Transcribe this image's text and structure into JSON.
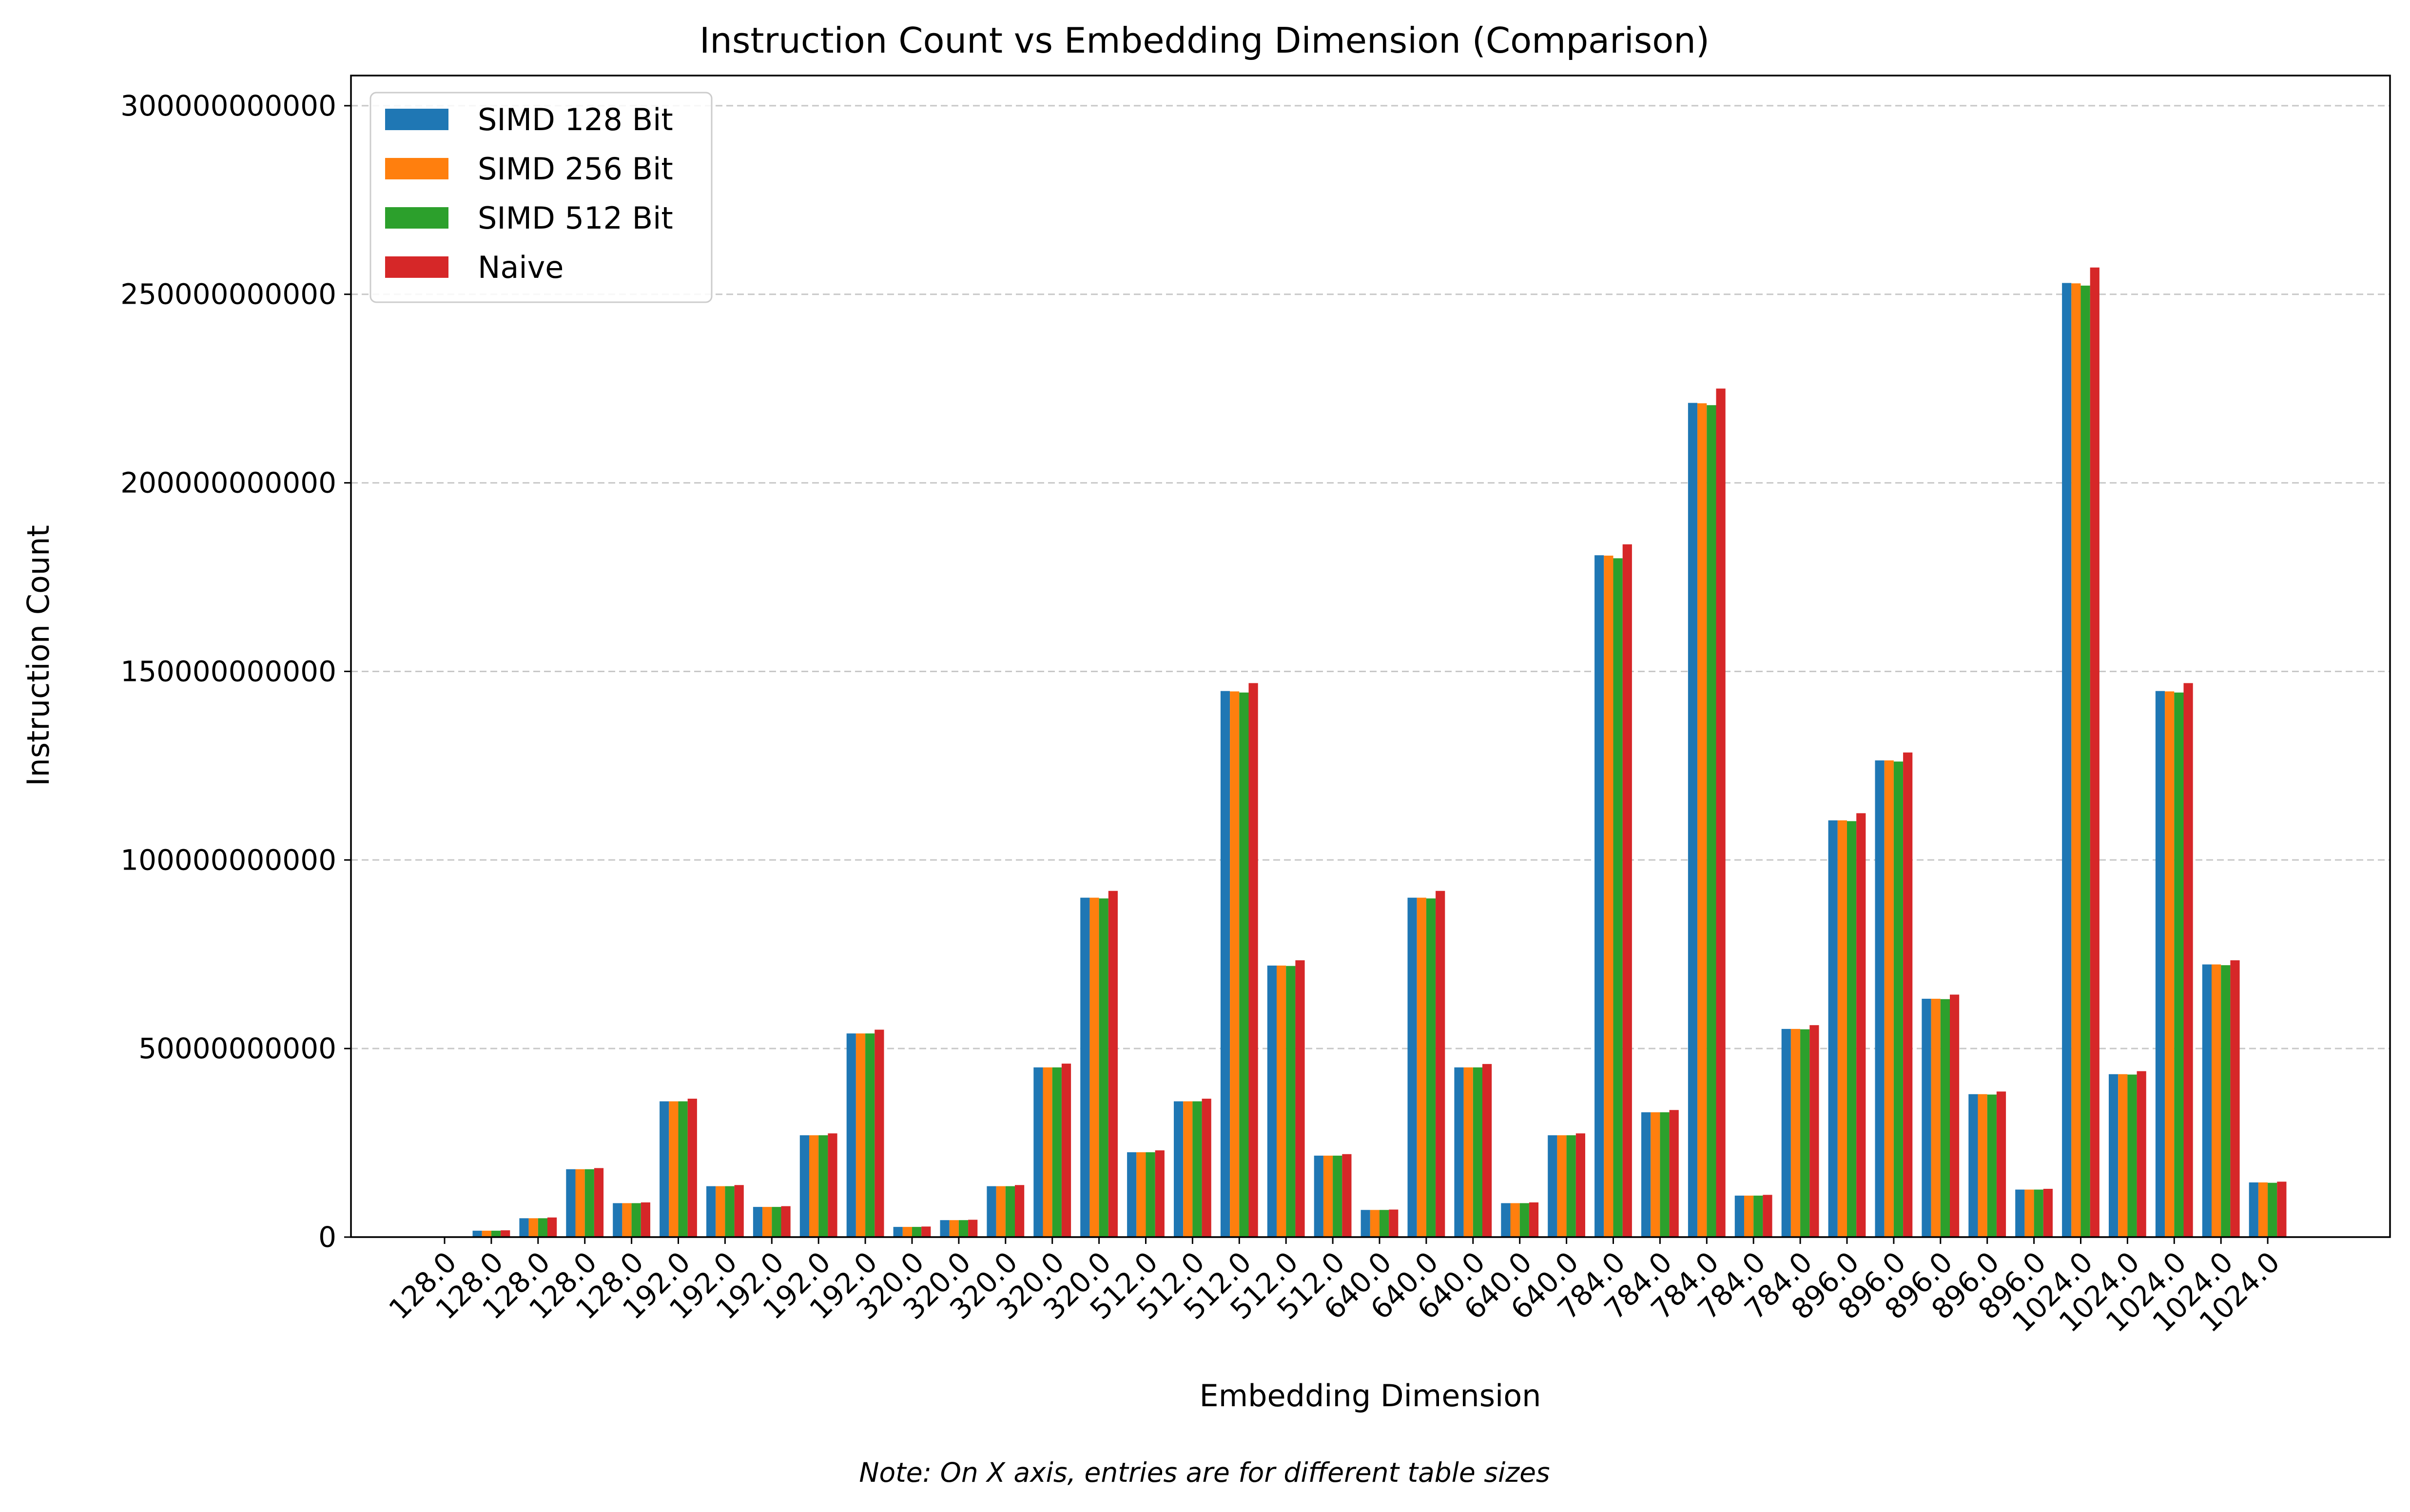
{
  "chart_data": {
    "type": "bar",
    "title": "Instruction Count vs Embedding Dimension (Comparison)",
    "xlabel": "Embedding Dimension",
    "ylabel": "Instruction Count",
    "note": "Note: On X axis, entries are for different table sizes",
    "categories": [
      "128.0",
      "128.0",
      "128.0",
      "128.0",
      "128.0",
      "192.0",
      "192.0",
      "192.0",
      "192.0",
      "192.0",
      "320.0",
      "320.0",
      "320.0",
      "320.0",
      "320.0",
      "512.0",
      "512.0",
      "512.0",
      "512.0",
      "512.0",
      "640.0",
      "640.0",
      "640.0",
      "640.0",
      "640.0",
      "784.0",
      "784.0",
      "784.0",
      "784.0",
      "784.0",
      "896.0",
      "896.0",
      "896.0",
      "896.0",
      "896.0",
      "1024.0",
      "1024.0",
      "1024.0",
      "1024.0",
      "1024.0"
    ],
    "yticks": [
      0,
      50000000000,
      100000000000,
      150000000000,
      200000000000,
      250000000000,
      300000000000
    ],
    "ytick_labels": [
      "0",
      "50000000000",
      "100000000000",
      "150000000000",
      "200000000000",
      "250000000000",
      "300000000000"
    ],
    "ylim": [
      0,
      308000000000
    ],
    "grid": "y-dashed",
    "legend_position": "top-left",
    "series": [
      {
        "name": "SIMD 128 Bit",
        "color": "#1f77b4",
        "values": [
          0,
          1700000000,
          5000000000,
          18000000000,
          9000000000,
          36000000000,
          13500000000,
          8000000000,
          27000000000,
          54000000000,
          2700000000,
          4500000000,
          13500000000,
          45000000000,
          90000000000,
          22500000000,
          36000000000,
          144800000000,
          72000000000,
          21600000000,
          7200000000,
          90000000000,
          45000000000,
          9000000000,
          27000000000,
          180800000000,
          33100000000,
          221200000000,
          11000000000,
          55200000000,
          110500000000,
          126400000000,
          63200000000,
          37900000000,
          12600000000,
          253000000000,
          43200000000,
          144800000000,
          72300000000,
          14500000000
        ]
      },
      {
        "name": "SIMD 256 Bit",
        "color": "#ff7f0e",
        "values": [
          0,
          1700000000,
          5000000000,
          18000000000,
          9000000000,
          36000000000,
          13500000000,
          8000000000,
          27000000000,
          54000000000,
          2700000000,
          4500000000,
          13500000000,
          45000000000,
          90000000000,
          22500000000,
          36000000000,
          144700000000,
          72000000000,
          21600000000,
          7200000000,
          90000000000,
          45000000000,
          9000000000,
          27000000000,
          180700000000,
          33100000000,
          221100000000,
          11000000000,
          55200000000,
          110500000000,
          126400000000,
          63200000000,
          37900000000,
          12600000000,
          252900000000,
          43200000000,
          144700000000,
          72300000000,
          14500000000
        ]
      },
      {
        "name": "SIMD 512 Bit",
        "color": "#2ca02c",
        "values": [
          0,
          1700000000,
          5000000000,
          18000000000,
          9000000000,
          36000000000,
          13500000000,
          8000000000,
          27000000000,
          54000000000,
          2700000000,
          4500000000,
          13500000000,
          45000000000,
          89800000000,
          22500000000,
          36000000000,
          144400000000,
          71900000000,
          21600000000,
          7200000000,
          89800000000,
          45000000000,
          9000000000,
          27000000000,
          180000000000,
          33100000000,
          220600000000,
          11000000000,
          55100000000,
          110300000000,
          126100000000,
          63100000000,
          37800000000,
          12600000000,
          252300000000,
          43100000000,
          144400000000,
          72100000000,
          14400000000
        ]
      },
      {
        "name": "Naive",
        "color": "#d62728",
        "values": [
          0,
          1800000000,
          5200000000,
          18300000000,
          9200000000,
          36700000000,
          13800000000,
          8200000000,
          27500000000,
          55000000000,
          2800000000,
          4600000000,
          13800000000,
          46000000000,
          91800000000,
          23000000000,
          36700000000,
          146900000000,
          73400000000,
          22000000000,
          7300000000,
          91800000000,
          45900000000,
          9200000000,
          27500000000,
          183700000000,
          33700000000,
          225000000000,
          11200000000,
          56200000000,
          112400000000,
          128500000000,
          64300000000,
          38600000000,
          12800000000,
          257100000000,
          44000000000,
          146900000000,
          73400000000,
          14700000000
        ]
      }
    ]
  }
}
